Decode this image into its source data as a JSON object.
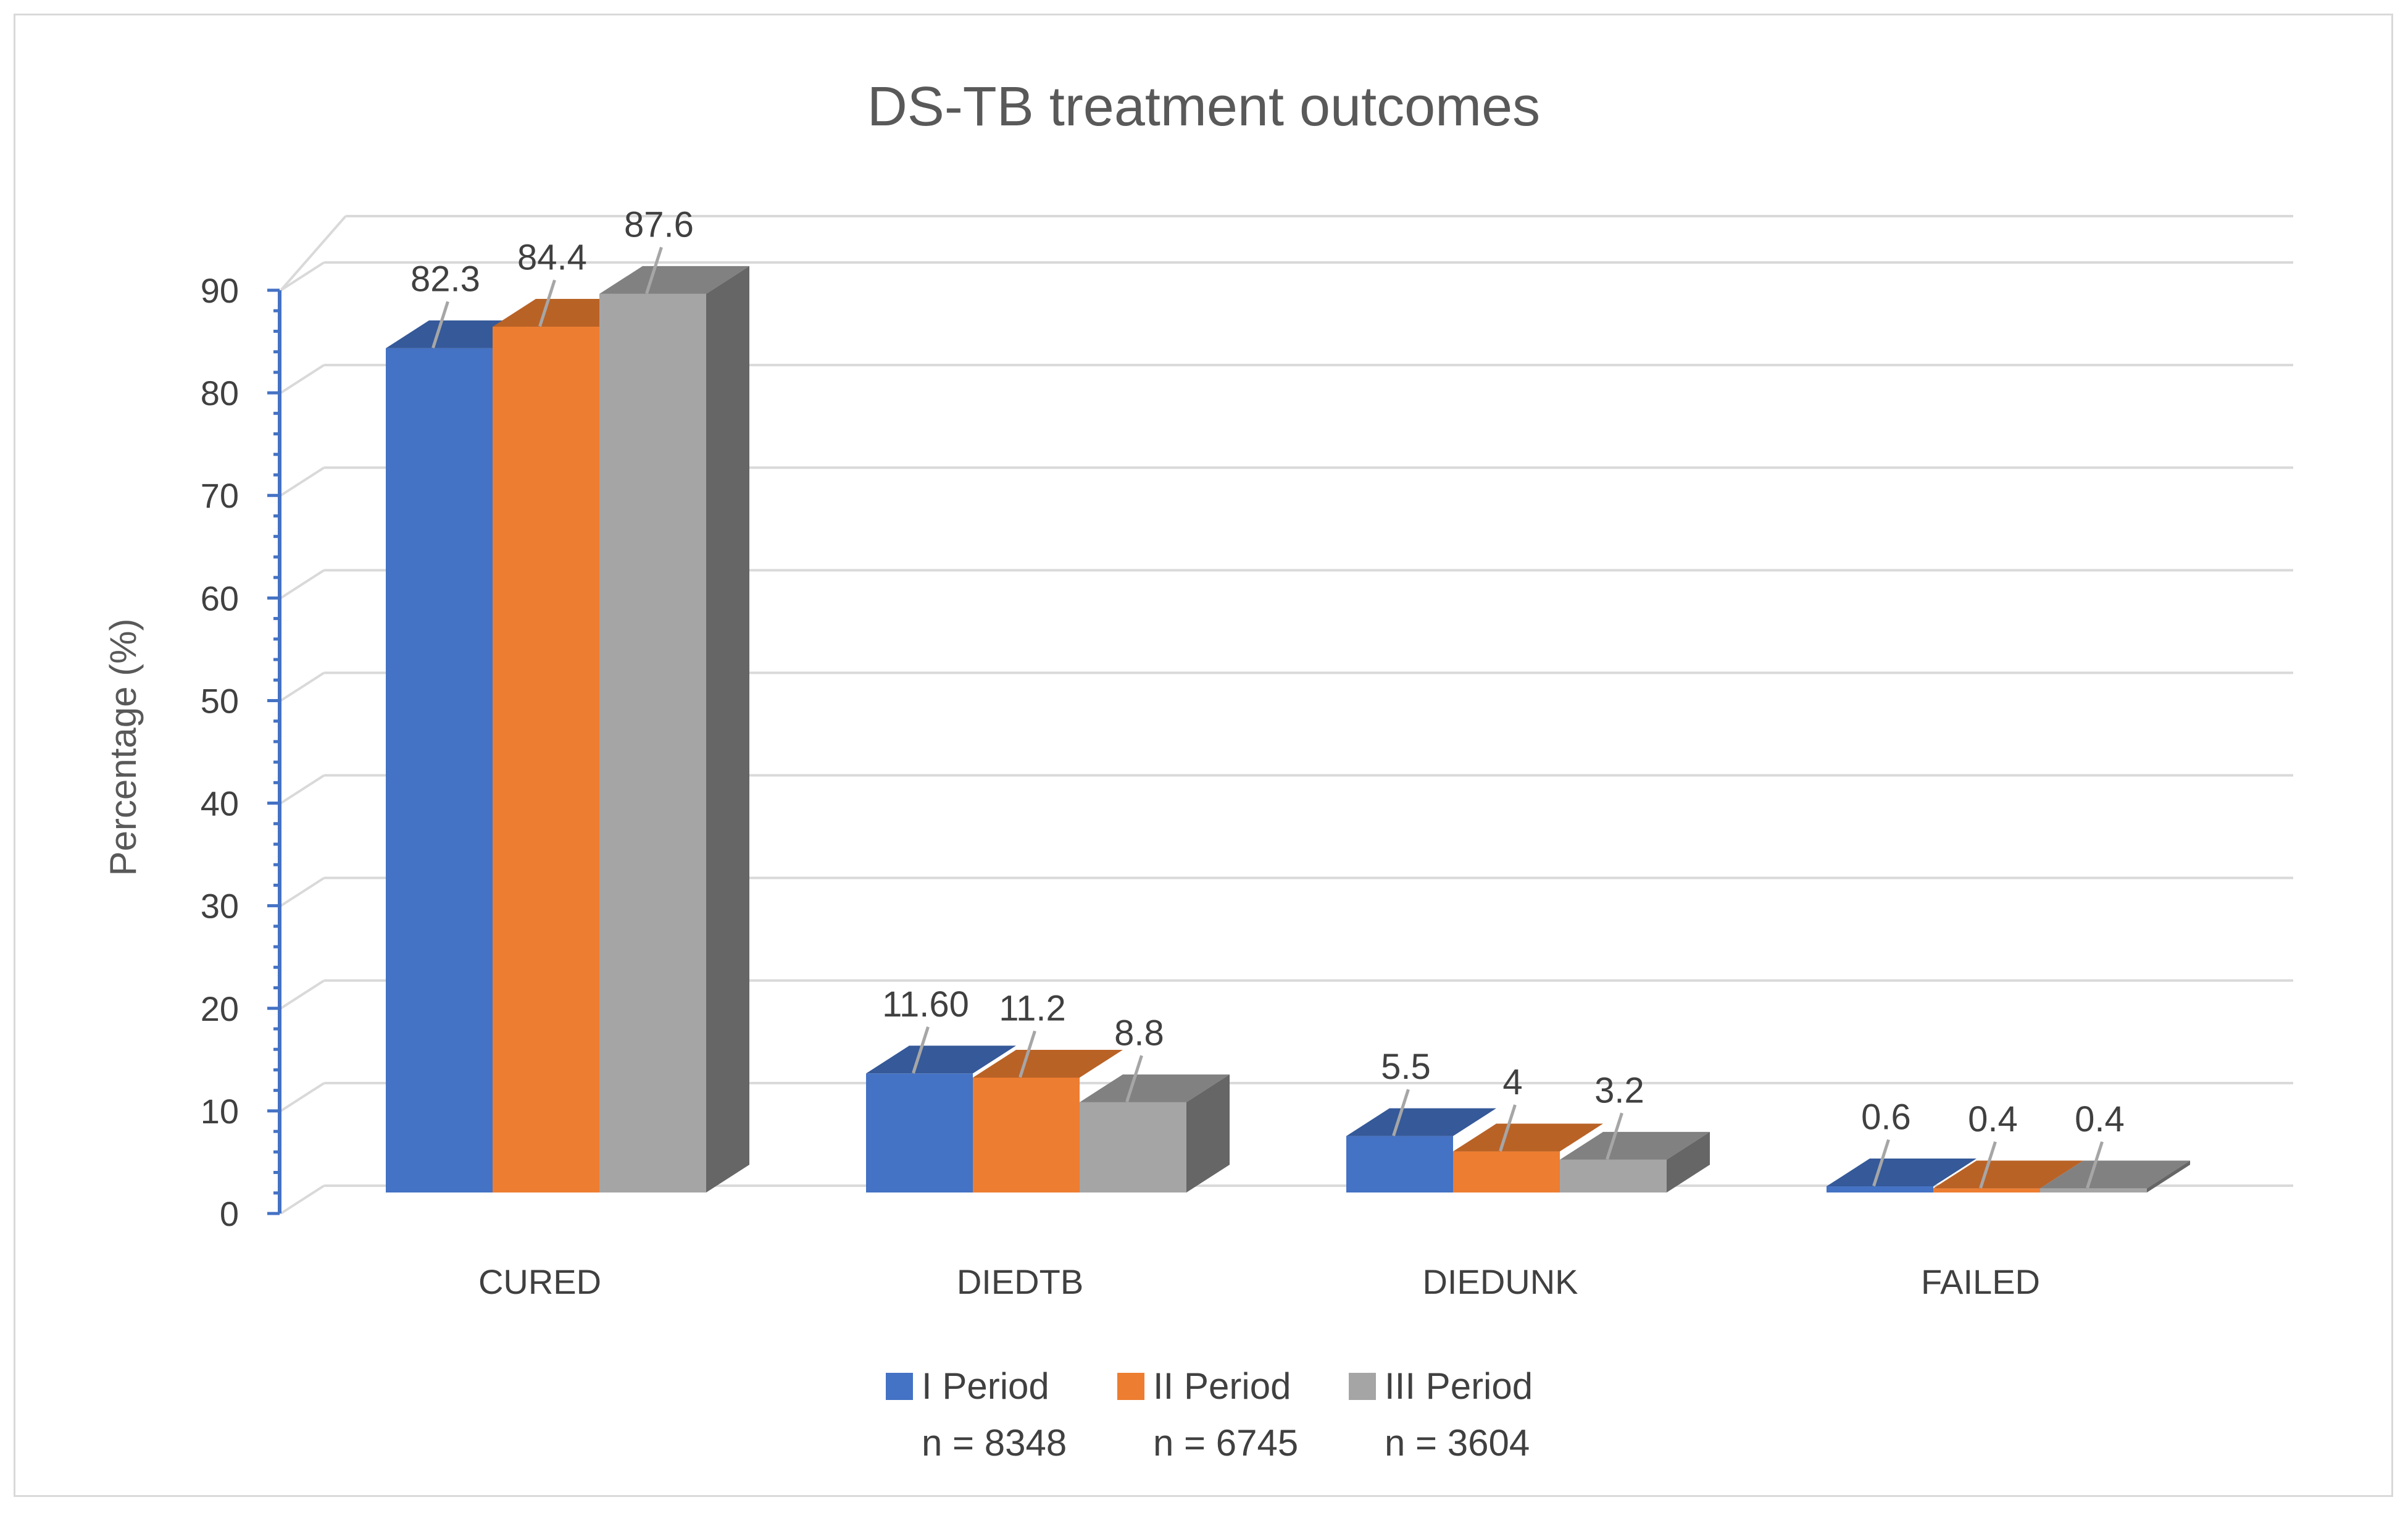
{
  "chart_data": {
    "type": "bar",
    "title": "DS-TB treatment outcomes",
    "xlabel": "",
    "ylabel": "Percentage (%)",
    "ylim": [
      0,
      90
    ],
    "ytick_step": 10,
    "grid": true,
    "legend_position": "bottom",
    "categories": [
      "CURED",
      "DIEDTB",
      "DIEDUNK",
      "FAILED"
    ],
    "series": [
      {
        "name": "I Period",
        "sub_label": "n = 8348",
        "color": "#4472c4",
        "values": [
          82.3,
          11.6,
          5.5,
          0.6
        ],
        "labels": [
          "82.3",
          "11.60",
          "5.5",
          "0.6"
        ]
      },
      {
        "name": "II Period",
        "sub_label": "n = 6745",
        "color": "#ed7d31",
        "values": [
          84.4,
          11.2,
          4,
          0.4
        ],
        "labels": [
          "84.4",
          "11.2",
          "4",
          "0.4"
        ]
      },
      {
        "name": "III Period",
        "sub_label": "n = 3604",
        "color": "#a5a5a5",
        "values": [
          87.6,
          8.8,
          3.2,
          0.4
        ],
        "labels": [
          "87.6",
          "8.8",
          "3.2",
          "0.4"
        ]
      }
    ]
  }
}
